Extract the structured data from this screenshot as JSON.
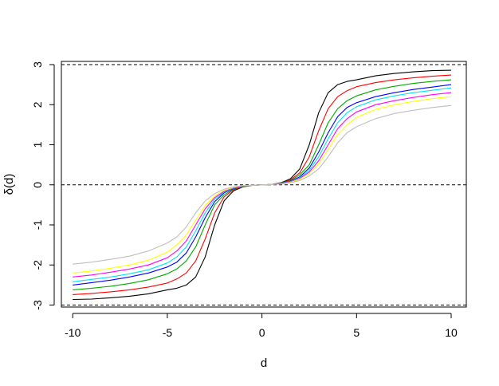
{
  "chart_data": {
    "type": "line",
    "title": "",
    "xlabel": "d",
    "ylabel": "δ(d)",
    "xlim": [
      -10.6,
      10.8
    ],
    "ylim": [
      -3.05,
      3.08
    ],
    "x_ticks": [
      -10,
      -5,
      0,
      5,
      10
    ],
    "x_tick_labels": [
      "-10",
      "-5",
      "0",
      "5",
      "10"
    ],
    "y_ticks": [
      -3,
      -2,
      -1,
      0,
      1,
      2,
      3
    ],
    "y_tick_labels": [
      "-3",
      "-2",
      "-1",
      "0",
      "1",
      "2",
      "3"
    ],
    "grid": false,
    "legend": "none",
    "reference_lines": [
      {
        "y": 3,
        "style": "dashed",
        "color": "#000000"
      },
      {
        "y": 0,
        "style": "dashed",
        "color": "#000000"
      },
      {
        "y": -3,
        "style": "dashed",
        "color": "#000000"
      }
    ],
    "series": [
      {
        "color": "#000000",
        "x": [
          0,
          0.5,
          1,
          1.5,
          2,
          2.5,
          3,
          3.5,
          4,
          4.5,
          5,
          6,
          7,
          8,
          9,
          10
        ],
        "y": [
          0,
          0.01,
          0.05,
          0.15,
          0.4,
          1.0,
          1.8,
          2.3,
          2.5,
          2.58,
          2.62,
          2.72,
          2.78,
          2.82,
          2.85,
          2.86
        ]
      },
      {
        "color": "#ff0000",
        "x": [
          0,
          0.5,
          1,
          1.5,
          2,
          2.5,
          3,
          3.5,
          4,
          4.5,
          5,
          6,
          7,
          8,
          9,
          10
        ],
        "y": [
          0,
          0.01,
          0.04,
          0.12,
          0.3,
          0.7,
          1.35,
          1.9,
          2.2,
          2.35,
          2.45,
          2.55,
          2.62,
          2.67,
          2.71,
          2.74
        ]
      },
      {
        "color": "#00aa00",
        "x": [
          0,
          0.5,
          1,
          1.5,
          2,
          2.5,
          3,
          3.5,
          4,
          4.5,
          5,
          6,
          7,
          8,
          9,
          10
        ],
        "y": [
          0,
          0.01,
          0.04,
          0.1,
          0.25,
          0.5,
          1.0,
          1.55,
          1.9,
          2.1,
          2.22,
          2.37,
          2.46,
          2.53,
          2.58,
          2.62
        ]
      },
      {
        "color": "#0000ff",
        "x": [
          0,
          0.5,
          1,
          1.5,
          2,
          2.5,
          3,
          3.5,
          4,
          4.5,
          5,
          6,
          7,
          8,
          9,
          10
        ],
        "y": [
          0,
          0.01,
          0.03,
          0.09,
          0.2,
          0.42,
          0.82,
          1.3,
          1.7,
          1.93,
          2.05,
          2.2,
          2.3,
          2.38,
          2.44,
          2.5
        ]
      },
      {
        "color": "#00e5ee",
        "x": [
          0,
          0.5,
          1,
          1.5,
          2,
          2.5,
          3,
          3.5,
          4,
          4.5,
          5,
          6,
          7,
          8,
          9,
          10
        ],
        "y": [
          0,
          0.01,
          0.03,
          0.08,
          0.18,
          0.36,
          0.7,
          1.15,
          1.55,
          1.8,
          1.95,
          2.12,
          2.22,
          2.3,
          2.36,
          2.42
        ]
      },
      {
        "color": "#ff00ff",
        "x": [
          0,
          0.5,
          1,
          1.5,
          2,
          2.5,
          3,
          3.5,
          4,
          4.5,
          5,
          6,
          7,
          8,
          9,
          10
        ],
        "y": [
          0,
          0.01,
          0.03,
          0.07,
          0.16,
          0.32,
          0.6,
          1.0,
          1.4,
          1.65,
          1.82,
          2.0,
          2.1,
          2.18,
          2.25,
          2.3
        ]
      },
      {
        "color": "#ffff00",
        "x": [
          0,
          0.5,
          1,
          1.5,
          2,
          2.5,
          3,
          3.5,
          4,
          4.5,
          5,
          6,
          7,
          8,
          9,
          10
        ],
        "y": [
          0,
          0.01,
          0.02,
          0.06,
          0.14,
          0.28,
          0.52,
          0.88,
          1.25,
          1.5,
          1.68,
          1.88,
          2.0,
          2.08,
          2.15,
          2.2
        ]
      },
      {
        "color": "#bebebe",
        "x": [
          0,
          0.5,
          1,
          1.5,
          2,
          2.5,
          3,
          3.5,
          4,
          4.5,
          5,
          6,
          7,
          8,
          9,
          10
        ],
        "y": [
          0,
          0.01,
          0.02,
          0.05,
          0.11,
          0.22,
          0.4,
          0.7,
          1.05,
          1.3,
          1.45,
          1.65,
          1.78,
          1.86,
          1.93,
          1.98
        ]
      }
    ]
  }
}
